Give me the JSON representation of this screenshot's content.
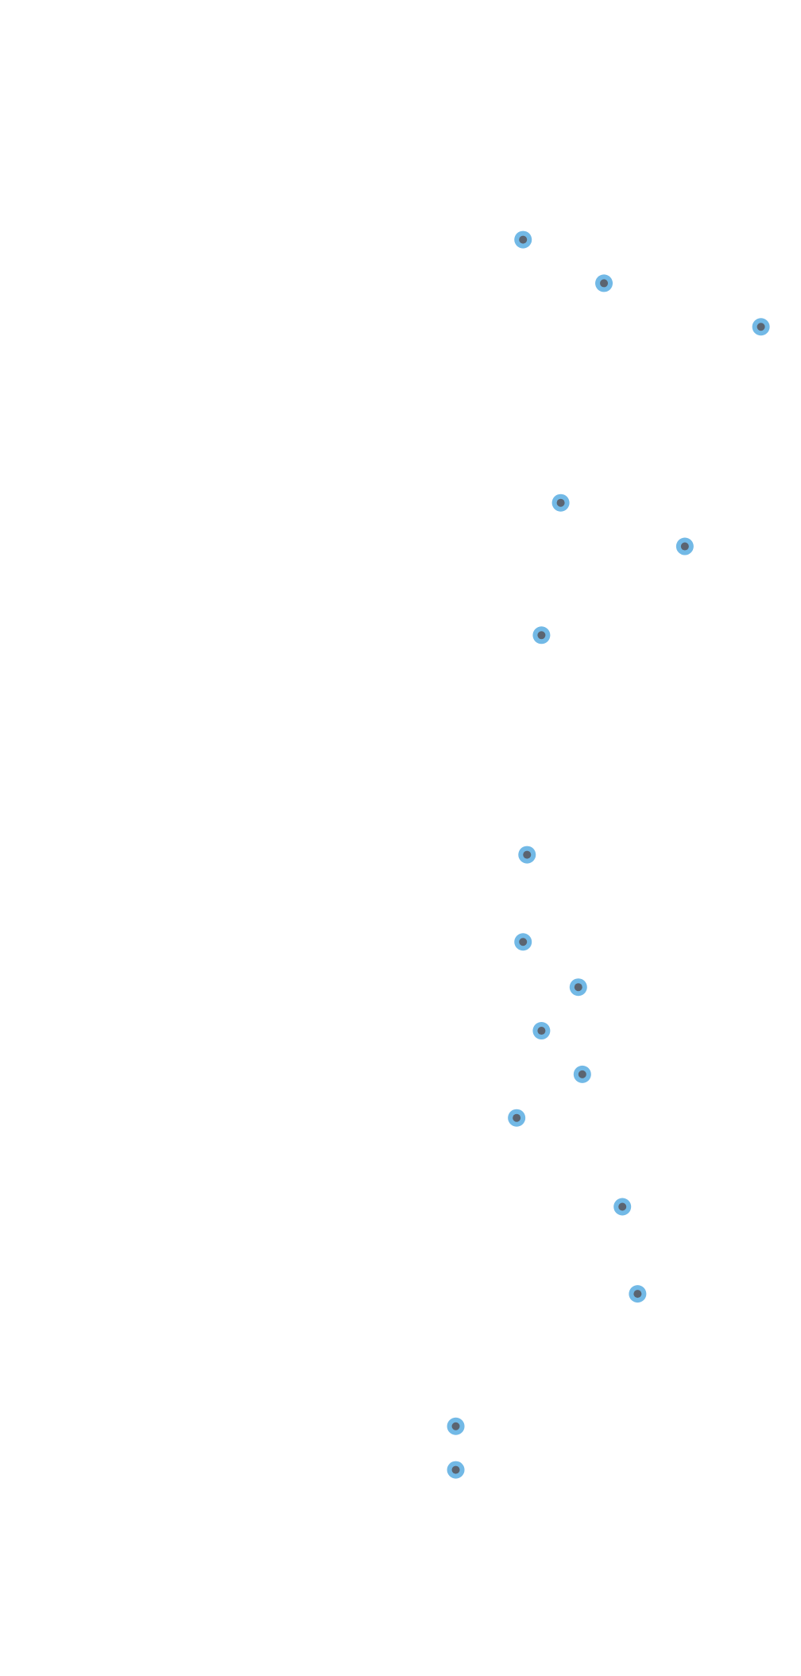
{
  "chart_data": {
    "type": "scatter",
    "title": "",
    "xlabel": "",
    "ylabel": "",
    "grid": false,
    "legend": "none",
    "series": [
      {
        "color_outer": "#72b9e6",
        "color_inner": "#5b6470",
        "points": [
          {
            "x": 0.653,
            "y": 0.143
          },
          {
            "x": 0.754,
            "y": 0.169
          },
          {
            "x": 0.95,
            "y": 0.195
          },
          {
            "x": 0.7,
            "y": 0.3
          },
          {
            "x": 0.855,
            "y": 0.326
          },
          {
            "x": 0.676,
            "y": 0.379
          },
          {
            "x": 0.658,
            "y": 0.51
          },
          {
            "x": 0.653,
            "y": 0.562
          },
          {
            "x": 0.722,
            "y": 0.589
          },
          {
            "x": 0.676,
            "y": 0.615
          },
          {
            "x": 0.727,
            "y": 0.641
          },
          {
            "x": 0.645,
            "y": 0.667
          },
          {
            "x": 0.777,
            "y": 0.72
          },
          {
            "x": 0.796,
            "y": 0.772
          },
          {
            "x": 0.569,
            "y": 0.851
          },
          {
            "x": 0.569,
            "y": 0.877
          }
        ]
      }
    ],
    "xlim": [
      0,
      1
    ],
    "ylim": [
      0,
      1
    ]
  }
}
